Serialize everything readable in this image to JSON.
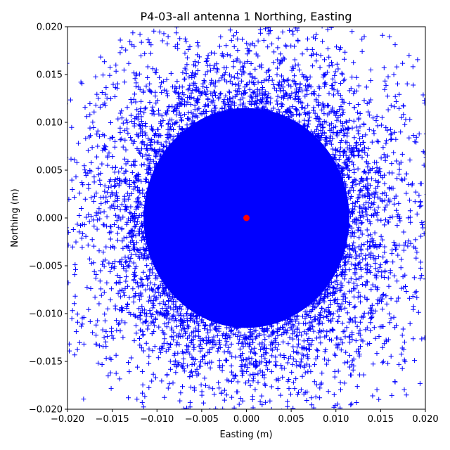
{
  "chart_data": {
    "type": "scatter",
    "title": "P4-03-all antenna 1 Northing, Easting",
    "xlabel": "Easting (m)",
    "ylabel": "Northing (m)",
    "xlim": [
      -0.02,
      0.02
    ],
    "ylim": [
      -0.02,
      0.02
    ],
    "xticks": [
      -0.02,
      -0.015,
      -0.01,
      -0.005,
      0.0,
      0.005,
      0.01,
      0.015,
      0.02
    ],
    "yticks": [
      -0.02,
      -0.015,
      -0.01,
      -0.005,
      0.0,
      0.005,
      0.01,
      0.015,
      0.02
    ],
    "xtick_labels": [
      "−0.020",
      "−0.015",
      "−0.010",
      "−0.005",
      "0.000",
      "0.005",
      "0.010",
      "0.015",
      "0.020"
    ],
    "ytick_labels": [
      "−0.020",
      "−0.015",
      "−0.010",
      "−0.005",
      "0.000",
      "0.005",
      "0.010",
      "0.015",
      "0.020"
    ],
    "grid": false,
    "series": [
      {
        "marker": "plus",
        "color": "#0000ff",
        "distribution": "dense cloud centred at origin, approx. std 0.008 m, spread over full axis range",
        "x": [
          -0.0185,
          -0.0175,
          -0.0168,
          -0.0152,
          -0.0141,
          -0.0132,
          0.0152,
          0.0168,
          0.0178,
          0.0186,
          0.0158,
          0.0166,
          0.0141,
          0.0129,
          0.0118,
          -0.0119,
          -0.0128,
          -0.0166,
          0.0123,
          0.0099
        ],
        "y": [
          0.0142,
          0.0108,
          -0.0112,
          -0.0162,
          0.0186,
          -0.0188,
          0.0191,
          0.0158,
          0.0103,
          -0.0082,
          -0.0152,
          -0.0171,
          -0.0186,
          0.0187,
          0.0195,
          0.0192,
          0.0181,
          0.0005,
          -0.0193,
          -0.0196
        ]
      },
      {
        "marker": "circle",
        "color": "#ff0000",
        "x": [
          0.0
        ],
        "y": [
          0.0
        ]
      }
    ]
  }
}
